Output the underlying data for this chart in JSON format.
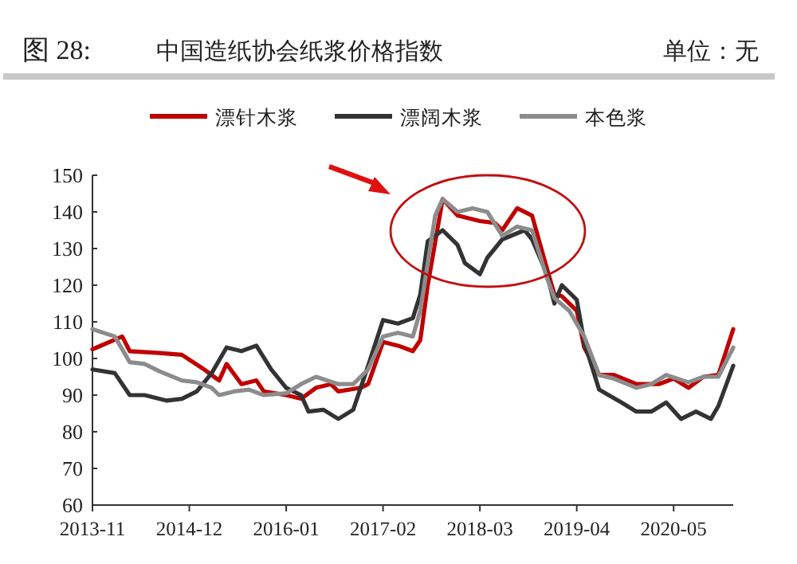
{
  "chart_data": {
    "type": "line",
    "title": "图 28:",
    "subtitle": "中国造纸协会纸浆价格指数",
    "annotations": [
      "单位：无"
    ],
    "xlim": [
      "2013-11",
      "2021-01"
    ],
    "xticks": [
      "2013-11",
      "2014-12",
      "2016-01",
      "2017-02",
      "2018-03",
      "2019-04",
      "2020-05"
    ],
    "ylim": [
      60,
      150
    ],
    "yticks": [
      60,
      70,
      80,
      90,
      100,
      110,
      120,
      130,
      140,
      150
    ],
    "legend": "top",
    "series": [
      {
        "name": "漂针木浆",
        "color": "#c00000",
        "x": [
          "2013-11",
          "2014-03",
          "2014-04",
          "2014-08",
          "2014-11",
          "2015-02",
          "2015-04",
          "2015-05",
          "2015-07",
          "2015-09",
          "2015-10",
          "2016-01",
          "2016-03",
          "2016-05",
          "2016-07",
          "2016-08",
          "2016-11",
          "2016-12",
          "2017-02",
          "2017-04",
          "2017-06",
          "2017-07",
          "2017-08",
          "2017-10",
          "2017-12",
          "2018-03",
          "2018-05",
          "2018-06",
          "2018-08",
          "2018-10",
          "2018-12",
          "2019-01",
          "2019-02",
          "2019-04",
          "2019-05",
          "2019-07",
          "2019-09",
          "2019-12",
          "2020-03",
          "2020-05",
          "2020-07",
          "2020-09",
          "2020-11",
          "2021-01"
        ],
        "values": [
          102.5,
          106,
          102,
          101.5,
          101,
          97,
          94,
          98.5,
          93,
          94,
          91,
          90,
          89,
          92,
          93,
          91,
          92,
          93,
          104.5,
          103.5,
          102,
          105,
          120,
          143.5,
          139,
          137.5,
          137,
          135,
          141,
          139,
          124.5,
          117.5,
          117,
          113,
          103,
          95.5,
          95.5,
          93,
          93,
          94.5,
          92,
          95,
          95.5,
          108
        ]
      },
      {
        "name": "漂阔木浆",
        "color": "#333333",
        "x": [
          "2013-11",
          "2014-02",
          "2014-04",
          "2014-06",
          "2014-09",
          "2014-11",
          "2015-01",
          "2015-03",
          "2015-05",
          "2015-07",
          "2015-09",
          "2015-11",
          "2016-01",
          "2016-03",
          "2016-04",
          "2016-06",
          "2016-08",
          "2016-10",
          "2016-12",
          "2017-02",
          "2017-04",
          "2017-06",
          "2017-07",
          "2017-08",
          "2017-10",
          "2017-12",
          "2018-01",
          "2018-03",
          "2018-04",
          "2018-06",
          "2018-09",
          "2018-10",
          "2018-12",
          "2019-01",
          "2019-02",
          "2019-04",
          "2019-05",
          "2019-07",
          "2019-10",
          "2019-12",
          "2020-02",
          "2020-04",
          "2020-06",
          "2020-08",
          "2020-10",
          "2020-11",
          "2021-01"
        ],
        "values": [
          97,
          96,
          90,
          90,
          88.5,
          89,
          91,
          96,
          103,
          102,
          103.5,
          97,
          92,
          90,
          85.5,
          86,
          83.5,
          86,
          98,
          110.5,
          109.5,
          111,
          117.5,
          132,
          135,
          131,
          126,
          123,
          127.5,
          132.5,
          135,
          132.5,
          123,
          115,
          120,
          116,
          104.5,
          91.5,
          88,
          85.5,
          85.5,
          88,
          83.5,
          85.5,
          83.5,
          87,
          98
        ]
      },
      {
        "name": "本色浆",
        "color": "#8c8c8c",
        "x": [
          "2013-11",
          "2014-02",
          "2014-04",
          "2014-06",
          "2014-08",
          "2014-11",
          "2015-01",
          "2015-03",
          "2015-04",
          "2015-06",
          "2015-08",
          "2015-10",
          "2016-01",
          "2016-03",
          "2016-05",
          "2016-08",
          "2016-10",
          "2016-12",
          "2017-02",
          "2017-04",
          "2017-06",
          "2017-07",
          "2017-09",
          "2017-10",
          "2017-12",
          "2018-02",
          "2018-04",
          "2018-06",
          "2018-08",
          "2018-10",
          "2018-12",
          "2019-01",
          "2019-03",
          "2019-05",
          "2019-07",
          "2019-09",
          "2019-12",
          "2020-02",
          "2020-04",
          "2020-07",
          "2020-09",
          "2020-11",
          "2021-01"
        ],
        "values": [
          108,
          106,
          99,
          98.5,
          96.5,
          94,
          93.5,
          92,
          90,
          91,
          91.5,
          90,
          90.5,
          93,
          95,
          93,
          93,
          97,
          106,
          107,
          106,
          113,
          139,
          143.5,
          140,
          141,
          140,
          133.5,
          136,
          135,
          122,
          116.5,
          113,
          106,
          95.5,
          94.5,
          92,
          93,
          95.5,
          93.5,
          95,
          95,
          103
        ]
      }
    ]
  }
}
